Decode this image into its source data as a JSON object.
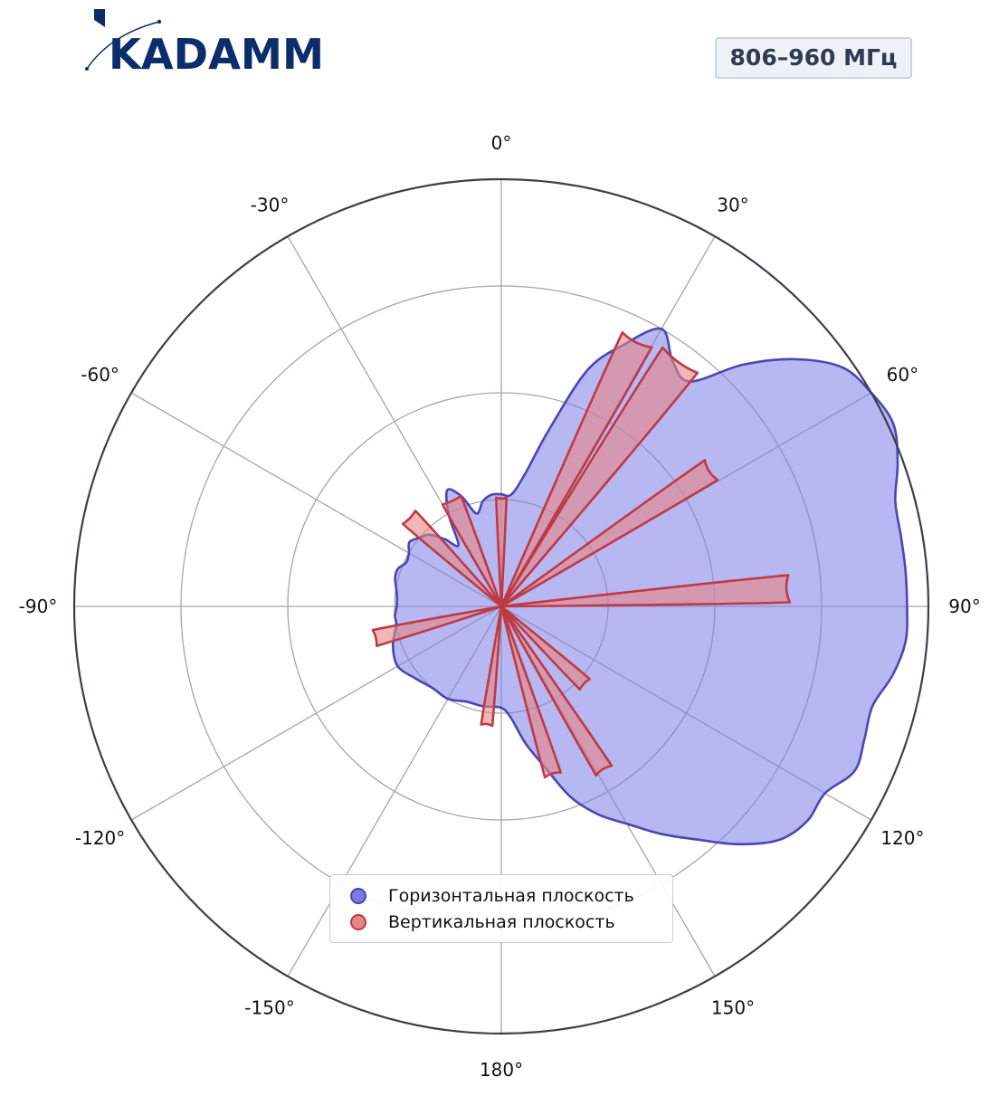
{
  "logo": {
    "text": "KADAMM"
  },
  "badge": {
    "text": "806–960 МГц"
  },
  "colors": {
    "horizontal_fill": "#7b7be8",
    "horizontal_line": "#4a46b4",
    "vertical_fill": "#e88585",
    "vertical_line": "#be3a44",
    "grid": "#a6a6a6",
    "outer_ring": "#3a3f4a",
    "logo": "#0b2d6b"
  },
  "chart_data": {
    "type": "polar",
    "angle_tick_labels": [
      "0°",
      "30°",
      "60°",
      "90°",
      "120°",
      "150°",
      "180°",
      "-150°",
      "-120°",
      "-90°",
      "-60°",
      "-30°"
    ],
    "angle_ticks": [
      0,
      30,
      60,
      90,
      120,
      150,
      180,
      -150,
      -120,
      -90,
      -60,
      -30
    ],
    "radial_rings": 4,
    "radial_max": 4,
    "radial_tick_labels_shown": false,
    "grid": true,
    "legend_position": "bottom-center",
    "series": [
      {
        "name": "Горизонтальная плоскость",
        "color": "#7b7be8",
        "line_color": "#4a46b4",
        "angles": [
          -180,
          -170,
          -160,
          -150,
          -140,
          -130,
          -120,
          -110,
          -100,
          -95,
          -90,
          -85,
          -80,
          -75,
          -70,
          -65,
          -60,
          -55,
          -50,
          -45,
          -40,
          -35,
          -30,
          -25,
          -20,
          -15,
          -10,
          -5,
          0,
          5,
          10,
          15,
          20,
          25,
          30,
          35,
          40,
          45,
          50,
          55,
          60,
          65,
          70,
          75,
          80,
          85,
          90,
          95,
          100,
          105,
          110,
          115,
          120,
          125,
          130,
          135,
          140,
          145,
          150,
          155,
          160,
          165,
          170,
          175
        ],
        "values": [
          0.95,
          0.95,
          0.95,
          1.0,
          1.0,
          1.05,
          1.12,
          1.08,
          1.0,
          1.0,
          0.98,
          0.98,
          1.0,
          1.03,
          1.03,
          0.98,
          1.0,
          1.05,
          1.0,
          0.95,
          0.82,
          0.7,
          0.98,
          1.2,
          1.1,
          0.9,
          1.0,
          1.05,
          1.05,
          1.05,
          1.25,
          1.7,
          2.35,
          2.7,
          3.0,
          2.8,
          2.75,
          3.2,
          3.6,
          3.9,
          4.0,
          4.05,
          3.95,
          3.82,
          3.8,
          3.8,
          3.8,
          3.8,
          3.72,
          3.6,
          3.62,
          3.65,
          3.5,
          3.5,
          3.4,
          3.15,
          2.85,
          2.6,
          2.35,
          2.15,
          1.9,
          1.55,
          1.3,
          1.05
        ]
      },
      {
        "name": "Вертикальная плоскость",
        "color": "#e88585",
        "line_color": "#be3a44",
        "lobes": [
          {
            "angle": 0,
            "value": 1.0,
            "width": 6
          },
          {
            "angle": 27,
            "value": 2.75,
            "width": 7
          },
          {
            "angle": 36,
            "value": 2.8,
            "width": 9
          },
          {
            "angle": 57,
            "value": 2.3,
            "width": 6
          },
          {
            "angle": 86.5,
            "value": 2.65,
            "width": 6
          },
          {
            "angle": 133,
            "value": 1.05,
            "width": 8
          },
          {
            "angle": 148,
            "value": 1.78,
            "width": 6
          },
          {
            "angle": 163,
            "value": 1.62,
            "width": 6
          },
          {
            "angle": -173,
            "value": 1.1,
            "width": 6
          },
          {
            "angle": -104,
            "value": 1.2,
            "width": 8
          },
          {
            "angle": -46,
            "value": 1.18,
            "width": 9
          },
          {
            "angle": -25,
            "value": 1.08,
            "width": 11
          }
        ]
      }
    ]
  }
}
